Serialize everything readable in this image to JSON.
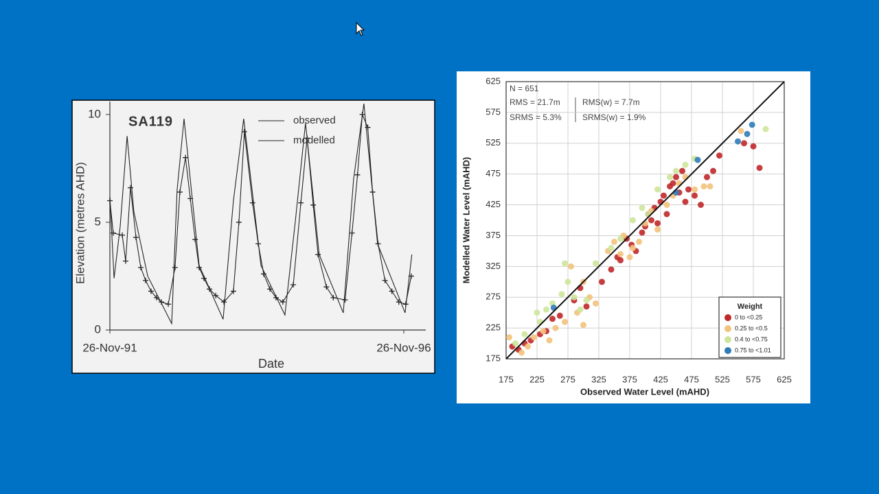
{
  "chart_data": [
    {
      "type": "line",
      "title": "SA119",
      "xlabel": "Date",
      "ylabel": "Elevation (metres AHD)",
      "xlim": [
        "1991-11-26",
        "1997-02-15"
      ],
      "ylim": [
        0,
        10.6
      ],
      "yticks": [
        0,
        5,
        10
      ],
      "xticks": [
        {
          "value": "1991-11-26",
          "label": "26-Nov-91"
        },
        {
          "value": "1996-11-26",
          "label": "26-Nov-96"
        }
      ],
      "series": [
        {
          "name": "observed",
          "color": "#222222",
          "marker": "+",
          "x": [
            "1991-11-26",
            "1991-12-17",
            "1992-02-11",
            "1992-03-03",
            "1992-04-02",
            "1992-05-06",
            "1992-06-05",
            "1992-07-05",
            "1992-08-08",
            "1992-09-11",
            "1992-10-11",
            "1992-11-23",
            "1993-01-04",
            "1993-02-03",
            "1993-03-10",
            "1993-04-09",
            "1993-05-09",
            "1993-06-03",
            "1993-07-03",
            "1993-08-06",
            "1993-09-14",
            "1993-11-04",
            "1994-01-02",
            "1994-02-05",
            "1994-03-11",
            "1994-05-01",
            "1994-06-05",
            "1994-07-09",
            "1994-08-17",
            "1994-09-24",
            "1994-11-05",
            "1995-01-09",
            "1995-02-25",
            "1995-04-05",
            "1995-05-13",
            "1995-06-12",
            "1995-08-03",
            "1995-09-15",
            "1995-11-27",
            "1996-01-09",
            "1996-02-12",
            "1996-03-13",
            "1996-04-16",
            "1996-05-16",
            "1996-06-19",
            "1996-08-01",
            "1996-09-13",
            "1996-10-26",
            "1996-12-08",
            "1997-01-11"
          ],
          "values": [
            6.0,
            4.5,
            4.4,
            3.2,
            6.6,
            4.3,
            2.9,
            2.3,
            1.8,
            1.5,
            1.3,
            1.2,
            2.9,
            6.4,
            8.0,
            6.1,
            4.2,
            2.9,
            2.4,
            1.9,
            1.6,
            1.3,
            1.8,
            5.0,
            9.2,
            5.9,
            4.0,
            2.6,
            1.9,
            1.5,
            1.3,
            2.1,
            5.9,
            8.9,
            5.8,
            3.5,
            2.0,
            1.5,
            1.4,
            4.5,
            7.2,
            10.0,
            9.4,
            6.4,
            4.0,
            2.3,
            1.8,
            1.3,
            1.2,
            2.5
          ]
        },
        {
          "name": "modelled",
          "color": "#222222",
          "marker": null,
          "x": [
            "1991-11-26",
            "1991-12-22",
            "1992-01-29",
            "1992-03-12",
            "1992-04-23",
            "1992-07-18",
            "1992-12-14",
            "1993-01-17",
            "1993-03-01",
            "1993-06-03",
            "1993-10-30",
            "1994-01-02",
            "1994-03-07",
            "1994-06-22",
            "1994-11-18",
            "1995-01-21",
            "1995-03-26",
            "1995-06-19",
            "1995-11-16",
            "1996-01-19",
            "1996-03-23",
            "1996-06-16",
            "1996-12-04",
            "1997-01-15"
          ],
          "values": [
            6.2,
            2.4,
            4.8,
            9.0,
            5.5,
            2.5,
            0.3,
            6.5,
            9.8,
            3.0,
            0.5,
            6.0,
            9.8,
            3.0,
            0.7,
            5.0,
            9.6,
            3.5,
            0.8,
            7.0,
            10.5,
            4.0,
            0.8,
            3.5
          ]
        }
      ]
    },
    {
      "type": "scatter",
      "xlabel": "Observed Water Level (mAHD)",
      "ylabel": "Modelled Water Level (mAHD)",
      "xlim": [
        175,
        625
      ],
      "ylim": [
        175,
        625
      ],
      "xticks": [
        175,
        225,
        275,
        325,
        375,
        425,
        475,
        525,
        575,
        625
      ],
      "yticks": [
        175,
        225,
        275,
        325,
        375,
        425,
        475,
        525,
        575,
        625
      ],
      "grid": true,
      "annotations": [
        "N = 651",
        "RMS = 21.7m",
        "SRMS = 5.3%",
        "RMS(w) = 7.7m",
        "SRMS(w) = 1.9%"
      ],
      "legend_title": "Weight",
      "legend": "lower right",
      "series": [
        {
          "name": "0 to <0.25",
          "color": "#c0282a",
          "x": [
            185,
            195,
            205,
            215,
            230,
            240,
            250,
            262,
            285,
            295,
            305,
            330,
            345,
            355,
            360,
            370,
            378,
            385,
            395,
            400,
            405,
            410,
            415,
            420,
            425,
            430,
            435,
            440,
            445,
            450,
            455,
            460,
            465,
            470,
            480,
            490,
            500,
            510,
            520,
            575,
            585,
            560
          ],
          "values": [
            195,
            190,
            200,
            205,
            215,
            220,
            240,
            245,
            270,
            290,
            260,
            300,
            320,
            340,
            335,
            370,
            360,
            350,
            380,
            390,
            410,
            400,
            420,
            395,
            430,
            440,
            410,
            455,
            460,
            470,
            445,
            480,
            430,
            450,
            440,
            425,
            470,
            480,
            505,
            520,
            485,
            525
          ]
        },
        {
          "name": "0.25 to <0.5",
          "color": "#f3c27c",
          "x": [
            180,
            200,
            210,
            220,
            235,
            255,
            270,
            280,
            290,
            300,
            310,
            320,
            340,
            350,
            360,
            365,
            375,
            380,
            390,
            400,
            410,
            420,
            435,
            445,
            455,
            465,
            480,
            495,
            505,
            555,
            245,
            300
          ],
          "values": [
            210,
            185,
            195,
            210,
            220,
            225,
            235,
            325,
            250,
            230,
            275,
            265,
            350,
            365,
            345,
            375,
            340,
            355,
            365,
            395,
            415,
            385,
            425,
            440,
            460,
            470,
            450,
            455,
            455,
            545,
            205,
            300
          ]
        },
        {
          "name": "0.4 to <0.75",
          "color": "#cde59a",
          "x": [
            190,
            205,
            225,
            240,
            250,
            265,
            275,
            285,
            295,
            305,
            320,
            345,
            360,
            380,
            395,
            405,
            420,
            440,
            450,
            465,
            480,
            595,
            270,
            230
          ],
          "values": [
            200,
            215,
            250,
            255,
            265,
            280,
            300,
            275,
            255,
            270,
            330,
            355,
            370,
            400,
            420,
            410,
            450,
            470,
            480,
            490,
            500,
            548,
            330,
            235
          ]
        },
        {
          "name": "0.75 to <1.01",
          "color": "#2f7bb8",
          "x": [
            252,
            450,
            485,
            550,
            565,
            573
          ],
          "values": [
            258,
            445,
            498,
            528,
            540,
            555
          ]
        }
      ]
    }
  ]
}
